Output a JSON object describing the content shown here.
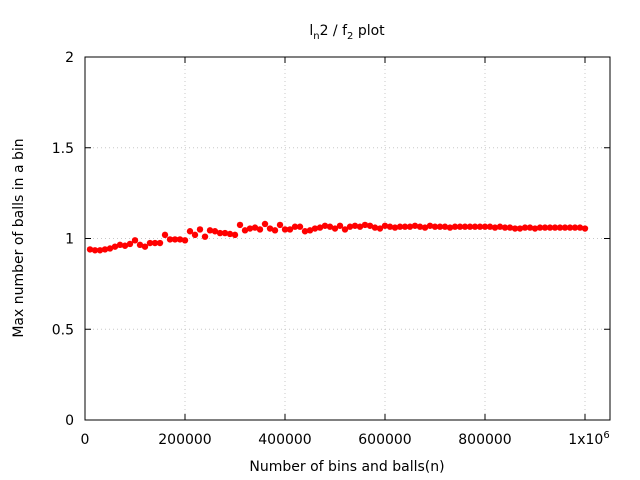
{
  "chart_data": {
    "type": "scatter",
    "title": {
      "base": "l",
      "sub1": "n",
      "mid": "2 / f",
      "sub2": "2",
      "tail": " plot"
    },
    "xlabel": "Number of bins and balls(n)",
    "ylabel": "Max number of balls in a bin",
    "xlim": [
      0,
      1050000
    ],
    "ylim": [
      0,
      2
    ],
    "grid": true,
    "marker_color": "#ff0000",
    "x_ticks": [
      {
        "value": 0,
        "label": "0"
      },
      {
        "value": 200000,
        "label": "200000"
      },
      {
        "value": 400000,
        "label": "400000"
      },
      {
        "value": 600000,
        "label": "600000"
      },
      {
        "value": 800000,
        "label": "800000"
      },
      {
        "value": 1000000,
        "label": "1x10",
        "sup": "6"
      }
    ],
    "y_ticks": [
      {
        "value": 0,
        "label": "0"
      },
      {
        "value": 0.5,
        "label": "0.5"
      },
      {
        "value": 1,
        "label": "1"
      },
      {
        "value": 1.5,
        "label": "1.5"
      },
      {
        "value": 2,
        "label": "2"
      }
    ],
    "series": [
      {
        "x": [
          10000,
          20000,
          30000,
          40000,
          50000,
          60000,
          70000,
          80000,
          90000,
          100000,
          110000,
          120000,
          130000,
          140000,
          150000,
          160000,
          170000,
          180000,
          190000,
          200000,
          210000,
          220000,
          230000,
          240000,
          250000,
          260000,
          270000,
          280000,
          290000,
          300000,
          310000,
          320000,
          330000,
          340000,
          350000,
          360000,
          370000,
          380000,
          390000,
          400000,
          410000,
          420000,
          430000,
          440000,
          450000,
          460000,
          470000,
          480000,
          490000,
          500000,
          510000,
          520000,
          530000,
          540000,
          550000,
          560000,
          570000,
          580000,
          590000,
          600000,
          610000,
          620000,
          630000,
          640000,
          650000,
          660000,
          670000,
          680000,
          690000,
          700000,
          710000,
          720000,
          730000,
          740000,
          750000,
          760000,
          770000,
          780000,
          790000,
          800000,
          810000,
          820000,
          830000,
          840000,
          850000,
          860000,
          870000,
          880000,
          890000,
          900000,
          910000,
          920000,
          930000,
          940000,
          950000,
          960000,
          970000,
          980000,
          990000,
          1000000
        ],
        "y": [
          0.94,
          0.935,
          0.935,
          0.94,
          0.945,
          0.955,
          0.965,
          0.96,
          0.97,
          0.99,
          0.965,
          0.955,
          0.975,
          0.975,
          0.975,
          1.02,
          0.995,
          0.995,
          0.995,
          0.99,
          1.04,
          1.02,
          1.05,
          1.01,
          1.045,
          1.04,
          1.03,
          1.03,
          1.025,
          1.02,
          1.075,
          1.045,
          1.055,
          1.06,
          1.05,
          1.08,
          1.055,
          1.045,
          1.075,
          1.05,
          1.05,
          1.065,
          1.065,
          1.04,
          1.045,
          1.055,
          1.06,
          1.07,
          1.065,
          1.055,
          1.07,
          1.05,
          1.065,
          1.07,
          1.065,
          1.075,
          1.07,
          1.06,
          1.055,
          1.07,
          1.065,
          1.06,
          1.065,
          1.065,
          1.065,
          1.07,
          1.065,
          1.06,
          1.07,
          1.065,
          1.065,
          1.065,
          1.06,
          1.065,
          1.065,
          1.065,
          1.065,
          1.065,
          1.065,
          1.065,
          1.065,
          1.06,
          1.065,
          1.06,
          1.06,
          1.055,
          1.055,
          1.06,
          1.06,
          1.055,
          1.06,
          1.06,
          1.06,
          1.06,
          1.06,
          1.06,
          1.06,
          1.06,
          1.06,
          1.055
        ]
      }
    ]
  }
}
